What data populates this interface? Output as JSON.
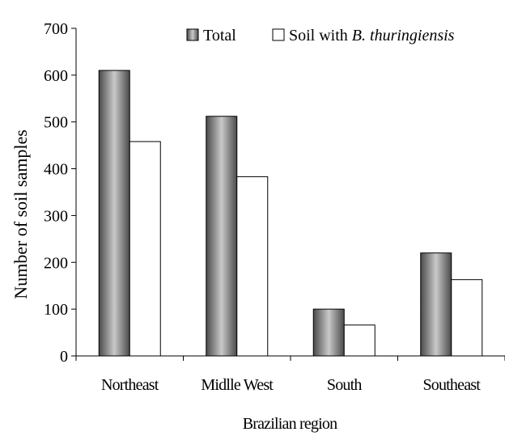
{
  "chart_data": {
    "type": "bar",
    "title": "",
    "xlabel": "Brazilian region",
    "ylabel": "Number of soil samples",
    "categories": [
      "Northeast",
      "Midlle West",
      "South",
      "Southeast"
    ],
    "series": [
      {
        "name": "Total",
        "values": [
          610,
          512,
          100,
          220
        ],
        "style": "gray-gradient"
      },
      {
        "name_plain": "Soil with ",
        "name_italic": "B. thuringiensis",
        "values": [
          458,
          383,
          66,
          163
        ],
        "style": "white"
      }
    ],
    "ylim": [
      0,
      700
    ],
    "yticks": [
      0,
      100,
      200,
      300,
      400,
      500,
      600,
      700
    ],
    "grid": false,
    "legend": "top-right"
  }
}
